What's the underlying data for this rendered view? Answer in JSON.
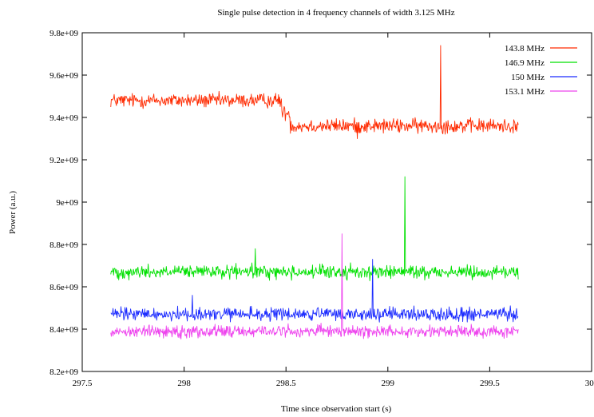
{
  "chart_data": {
    "type": "line",
    "title": "Single pulse detection in 4 frequency channels of width 3.125 MHz",
    "xlabel": "Time since observation start (s)",
    "ylabel": "Power (a.u.)",
    "xlim": [
      297.5,
      300
    ],
    "ylim": [
      8200000000.0,
      9800000000.0
    ],
    "x_ticks": [
      297.5,
      298,
      298.5,
      299,
      299.5,
      300
    ],
    "x_tick_labels": [
      "297.5",
      "298",
      "298.5",
      "299",
      "299.5",
      "300"
    ],
    "y_ticks": [
      8200000000.0,
      8400000000.0,
      8600000000.0,
      8800000000.0,
      9000000000.0,
      9200000000.0,
      9400000000.0,
      9600000000.0,
      9800000000.0
    ],
    "y_tick_labels": [
      "8.2e+09",
      "8.4e+09",
      "8.6e+09",
      "8.8e+09",
      "9e+09",
      "9.2e+09",
      "9.4e+09",
      "9.6e+09",
      "9.8e+09"
    ],
    "grid": false,
    "legend_position": "top-right",
    "x_range": [
      297.64,
      299.64
    ],
    "samples": 720,
    "series": [
      {
        "name": "143.8 MHz",
        "color": "#ff2a00",
        "level_segments": [
          {
            "x_start": 297.64,
            "x_end": 298.48,
            "mean": 9480000000.0
          },
          {
            "x_start": 298.48,
            "x_end": 298.52,
            "mean": 9420000000.0
          },
          {
            "x_start": 298.52,
            "x_end": 299.64,
            "mean": 9360000000.0
          }
        ],
        "noise_amplitude": 28000000.0,
        "spikes": [
          {
            "x": 299.258,
            "y": 9740000000.0
          },
          {
            "x": 298.85,
            "y": 9300000000.0
          }
        ]
      },
      {
        "name": "146.9 MHz",
        "color": "#00e000",
        "level_segments": [
          {
            "x_start": 297.64,
            "x_end": 299.64,
            "mean": 8670000000.0
          }
        ],
        "noise_amplitude": 26000000.0,
        "spikes": [
          {
            "x": 299.085,
            "y": 9120000000.0
          },
          {
            "x": 298.35,
            "y": 8780000000.0
          }
        ]
      },
      {
        "name": "150 MHz",
        "color": "#1a2aff",
        "level_segments": [
          {
            "x_start": 297.64,
            "x_end": 299.64,
            "mean": 8470000000.0
          }
        ],
        "noise_amplitude": 26000000.0,
        "spikes": [
          {
            "x": 298.925,
            "y": 8730000000.0
          },
          {
            "x": 298.04,
            "y": 8560000000.0
          }
        ]
      },
      {
        "name": "153.1 MHz",
        "color": "#ee44ee",
        "level_segments": [
          {
            "x_start": 297.64,
            "x_end": 299.64,
            "mean": 8390000000.0
          }
        ],
        "noise_amplitude": 24000000.0,
        "spikes": [
          {
            "x": 298.775,
            "y": 8850000000.0
          }
        ]
      }
    ]
  }
}
